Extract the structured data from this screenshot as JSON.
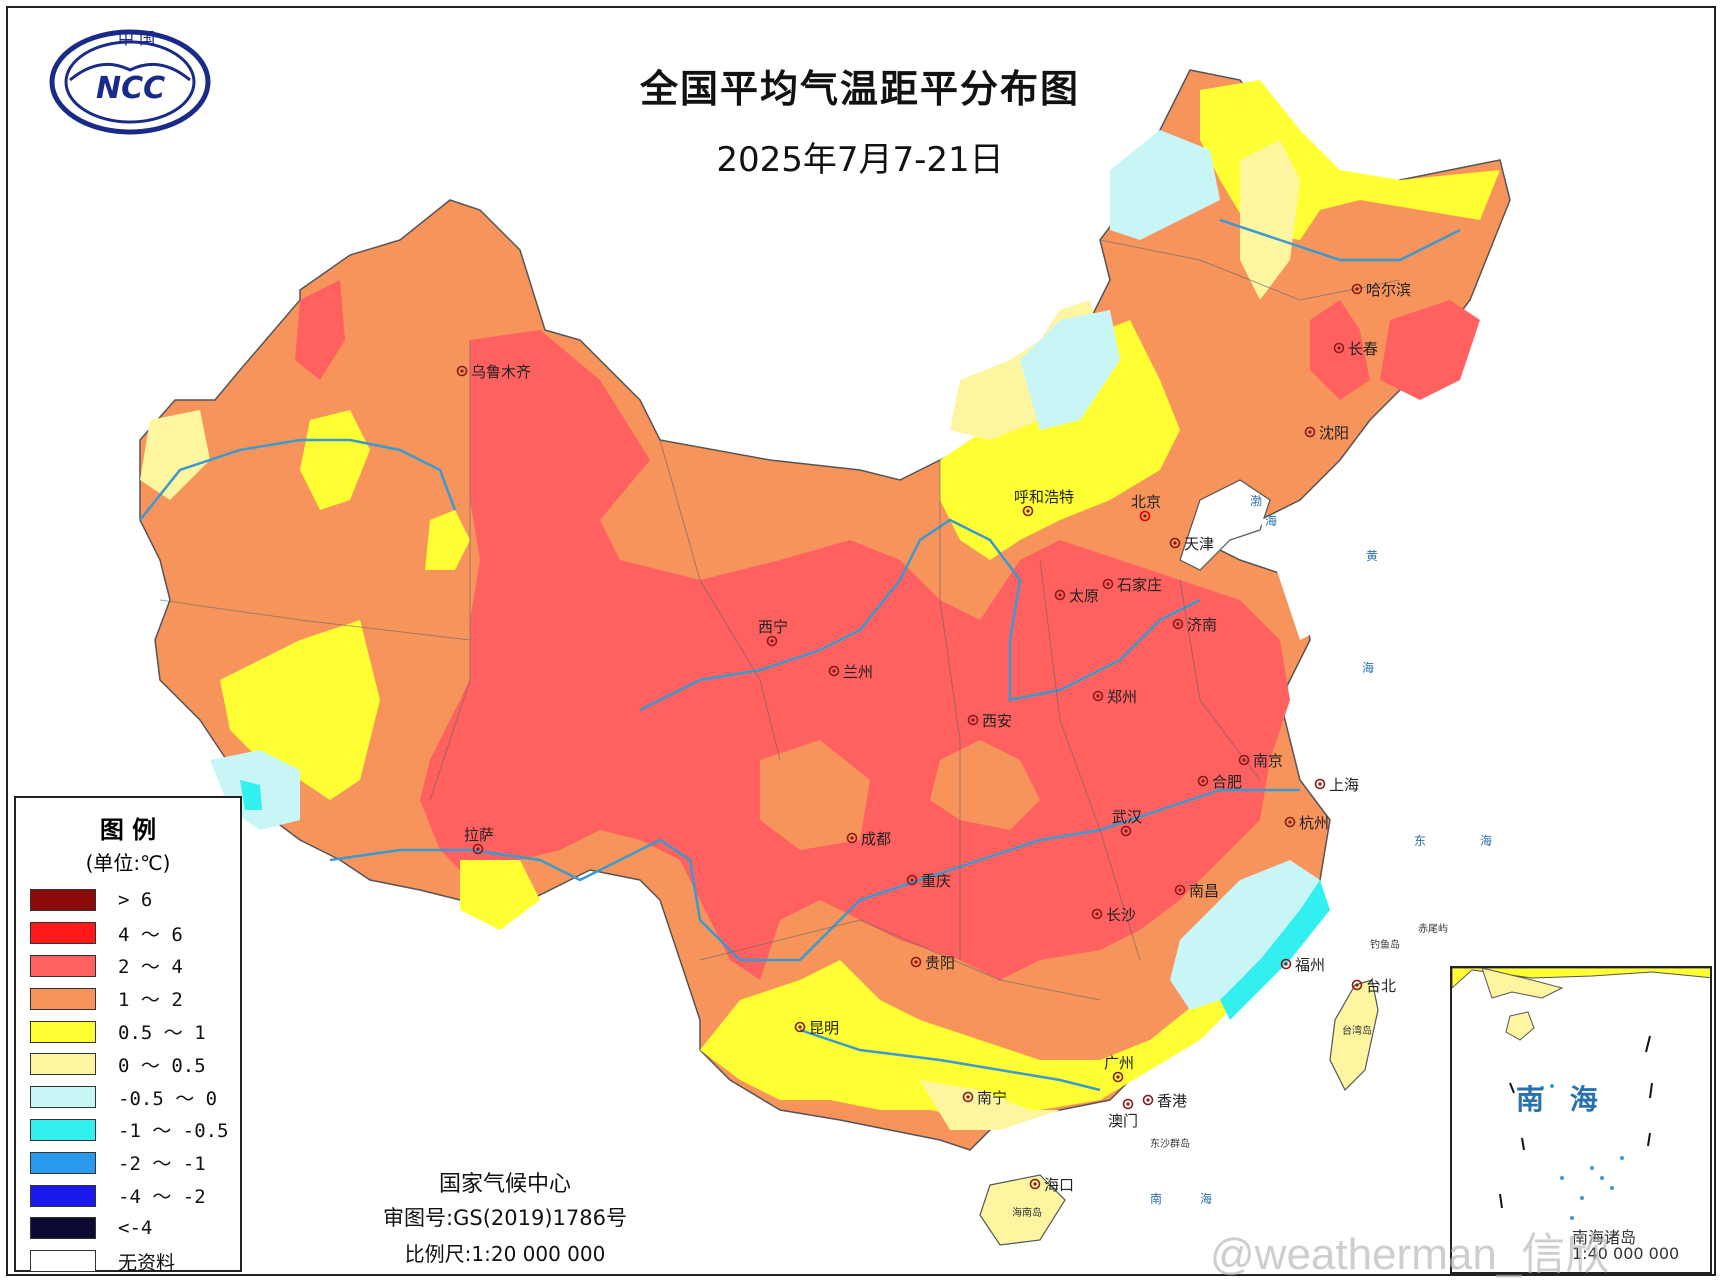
{
  "header": {
    "title": "全国平均气温距平分布图",
    "date": "2025年7月7-21日",
    "logo_text_top": "中 国",
    "logo_text_main": "NCC"
  },
  "legend": {
    "title": "图  例",
    "unit": "(单位:℃)",
    "items": [
      {
        "label": "> 6",
        "color": "#8b0a0a"
      },
      {
        "label": "4 ～ 6",
        "color": "#ff1a1a"
      },
      {
        "label": "2 ～ 4",
        "color": "#ff6060"
      },
      {
        "label": "1 ～ 2",
        "color": "#f7945c"
      },
      {
        "label": "0.5 ～ 1",
        "color": "#ffff33"
      },
      {
        "label": "0 ～ 0.5",
        "color": "#fdf5a0"
      },
      {
        "label": "-0.5 ～ 0",
        "color": "#c8f5f5"
      },
      {
        "label": "-1 ～ -0.5",
        "color": "#33f0f0"
      },
      {
        "label": "-2 ～ -1",
        "color": "#2a9aef"
      },
      {
        "label": "-4 ～ -2",
        "color": "#1a1aef"
      },
      {
        "label": "<-4",
        "color": "#0a0a33"
      },
      {
        "label": "无资料",
        "color": "#ffffff"
      }
    ]
  },
  "cities": [
    {
      "name": "乌鲁木齐"
    },
    {
      "name": "哈尔滨"
    },
    {
      "name": "长春"
    },
    {
      "name": "沈阳"
    },
    {
      "name": "呼和浩特"
    },
    {
      "name": "北京"
    },
    {
      "name": "天津"
    },
    {
      "name": "太原"
    },
    {
      "name": "石家庄"
    },
    {
      "name": "西宁"
    },
    {
      "name": "兰州"
    },
    {
      "name": "济南"
    },
    {
      "name": "郑州"
    },
    {
      "name": "西安"
    },
    {
      "name": "南京"
    },
    {
      "name": "合肥"
    },
    {
      "name": "上海"
    },
    {
      "name": "拉萨"
    },
    {
      "name": "成都"
    },
    {
      "name": "武汉"
    },
    {
      "name": "杭州"
    },
    {
      "name": "重庆"
    },
    {
      "name": "南昌"
    },
    {
      "name": "长沙"
    },
    {
      "name": "福州"
    },
    {
      "name": "贵阳"
    },
    {
      "name": "台北"
    },
    {
      "name": "昆明"
    },
    {
      "name": "广州"
    },
    {
      "name": "南宁"
    },
    {
      "name": "澳门"
    },
    {
      "name": "香港"
    },
    {
      "name": "海口"
    }
  ],
  "islands": [
    "钓鱼岛",
    "赤尾屿",
    "台湾岛",
    "东沙群岛",
    "海南岛"
  ],
  "seas": [
    "渤",
    "海",
    "黄",
    "海",
    "东",
    "海",
    "南",
    "海"
  ],
  "credits": {
    "org": "国家气候中心",
    "review": "审图号:GS(2019)1786号",
    "scale": "比例尺:1:20 000 000"
  },
  "inset": {
    "label": "南 海",
    "caption_line1": "南海诸岛",
    "caption_line2": "1:40 000 000"
  },
  "watermark": "@weatherman_信欣"
}
